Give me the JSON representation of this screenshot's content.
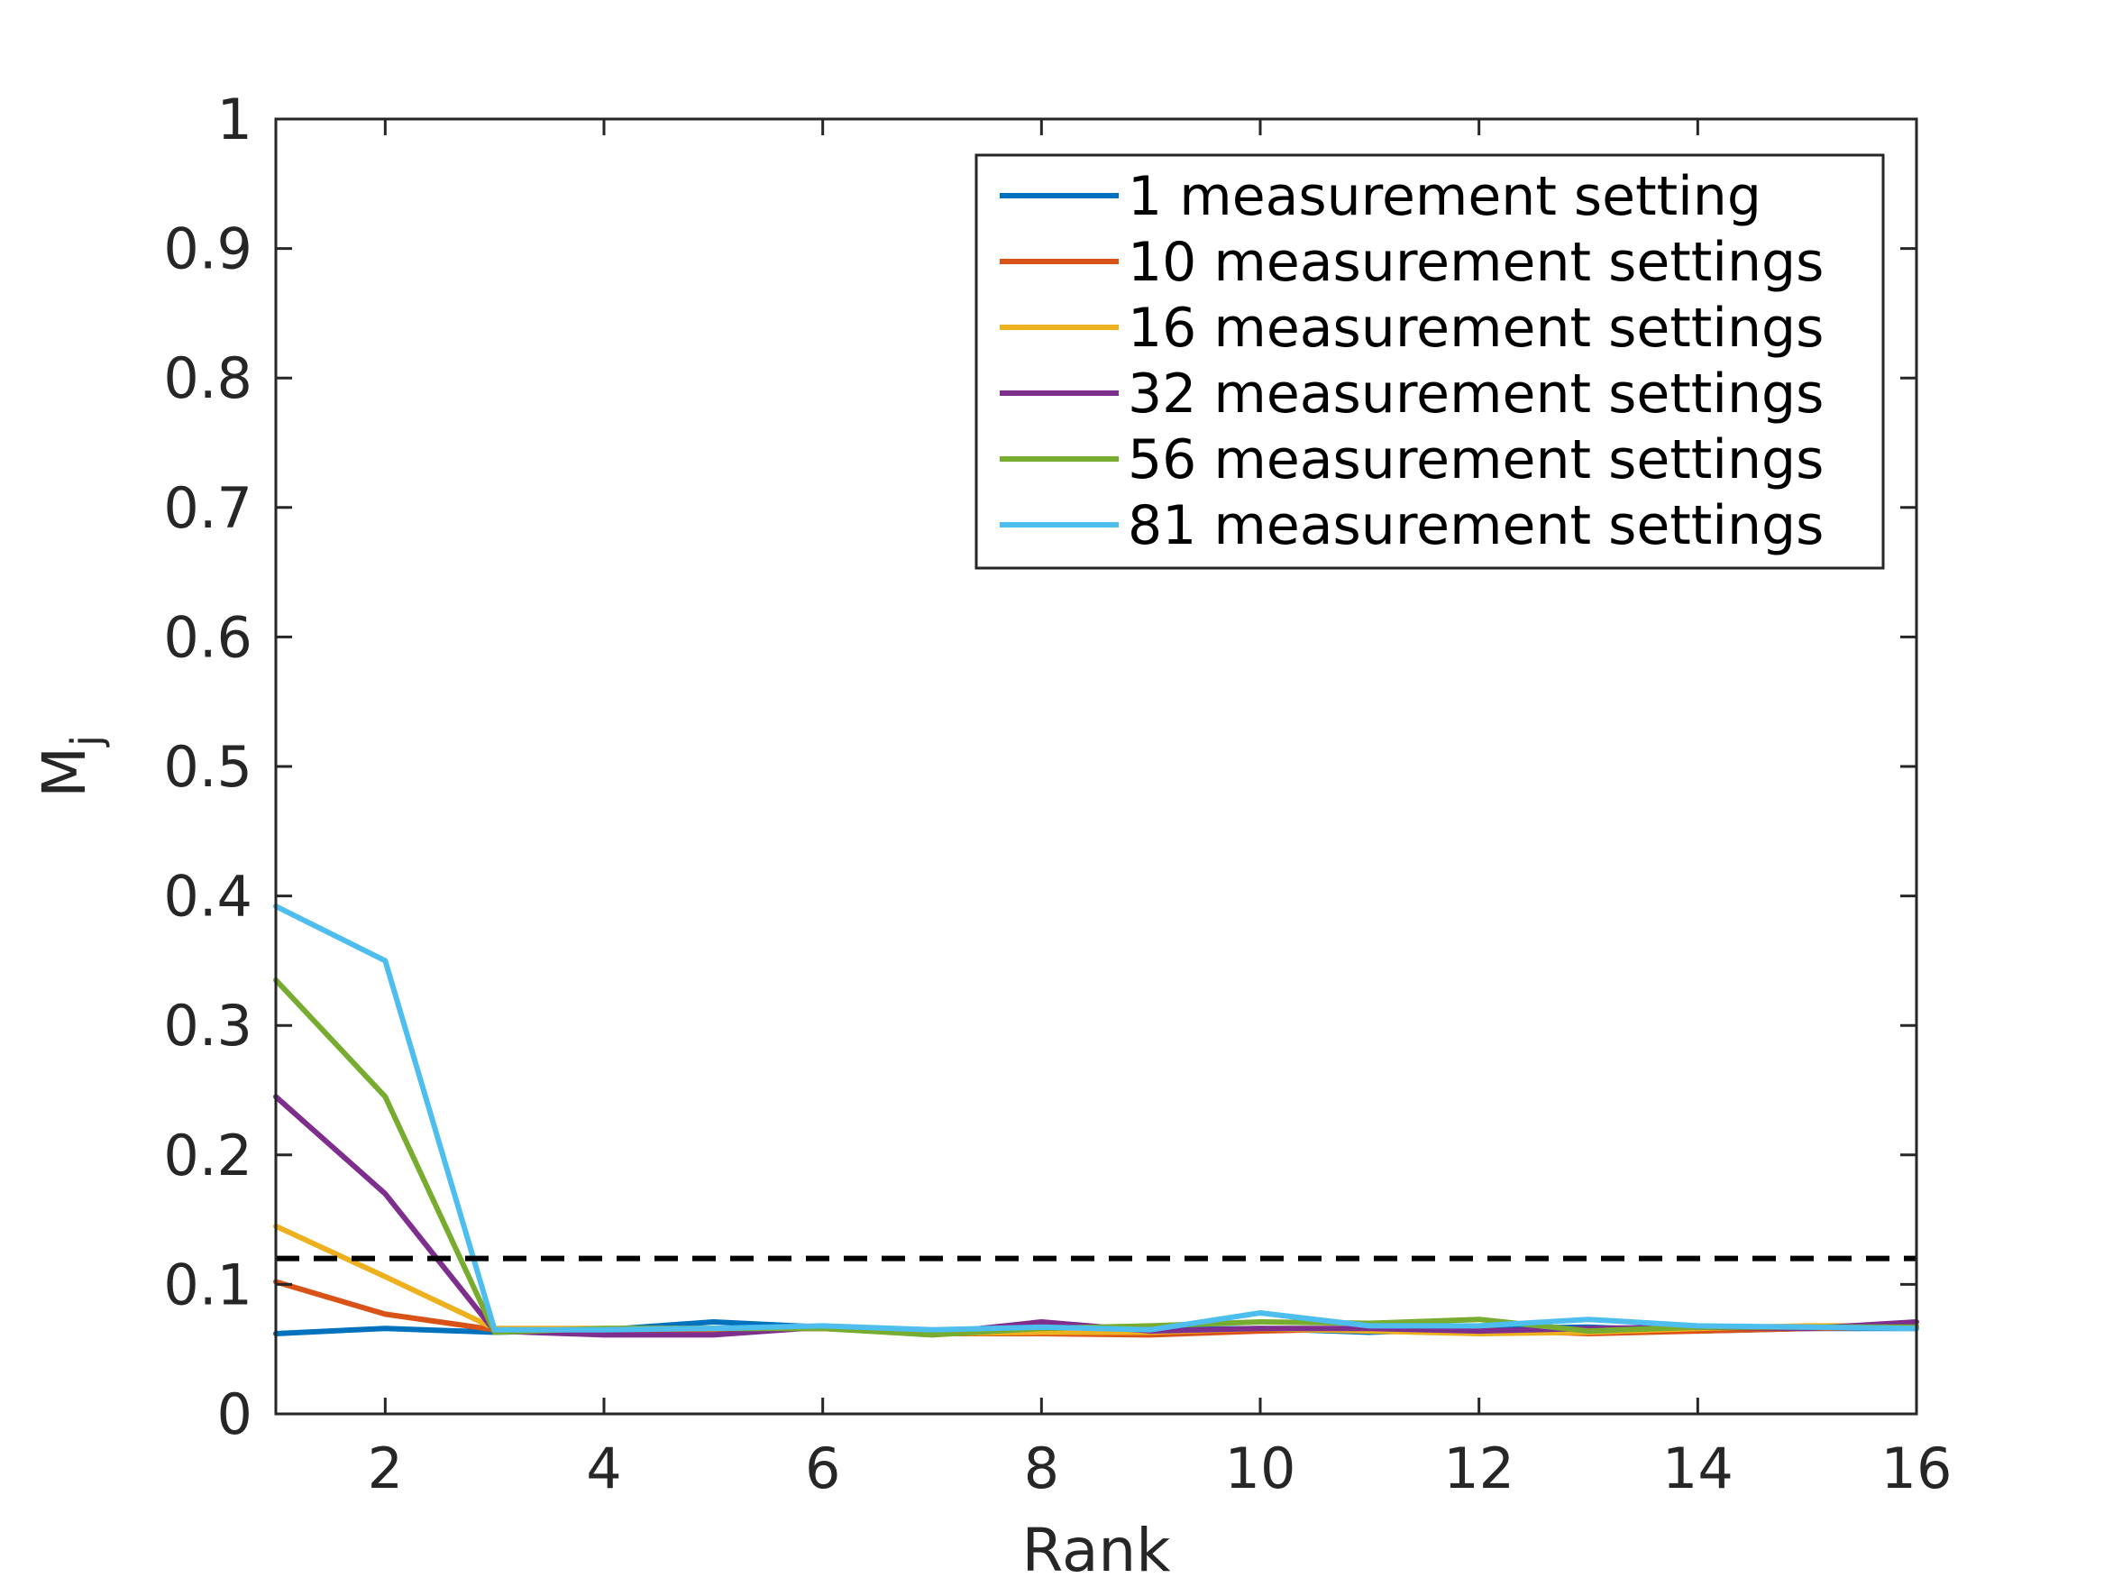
{
  "chart_data": {
    "type": "line",
    "xlabel": "Rank",
    "ylabel": "M",
    "ylabel_subscript": "j",
    "xlim": [
      1,
      16
    ],
    "ylim": [
      0,
      1
    ],
    "xticks": [
      2,
      4,
      6,
      8,
      10,
      12,
      14,
      16
    ],
    "xtick_labels": [
      "2",
      "4",
      "6",
      "8",
      "10",
      "12",
      "14",
      "16"
    ],
    "yticks": [
      0,
      0.1,
      0.2,
      0.3,
      0.4,
      0.5,
      0.6,
      0.7,
      0.8,
      0.9,
      1
    ],
    "ytick_labels": [
      "0",
      "0.1",
      "0.2",
      "0.3",
      "0.4",
      "0.5",
      "0.6",
      "0.7",
      "0.8",
      "0.9",
      "1"
    ],
    "grid": false,
    "legend_position": "top-right",
    "x": [
      1,
      2,
      3,
      4,
      5,
      6,
      7,
      8,
      9,
      10,
      11,
      12,
      13,
      14,
      15,
      16
    ],
    "series": [
      {
        "name": "1 measurement setting",
        "color": "#0072BD",
        "values": [
          0.062,
          0.066,
          0.063,
          0.065,
          0.071,
          0.067,
          0.064,
          0.066,
          0.065,
          0.066,
          0.063,
          0.066,
          0.067,
          0.064,
          0.066,
          0.066
        ]
      },
      {
        "name": "10 measurement settings",
        "color": "#D95319",
        "values": [
          0.102,
          0.077,
          0.065,
          0.064,
          0.065,
          0.066,
          0.062,
          0.062,
          0.061,
          0.064,
          0.066,
          0.065,
          0.062,
          0.064,
          0.066,
          0.067
        ]
      },
      {
        "name": "16 measurement settings",
        "color": "#EDB120",
        "values": [
          0.145,
          0.106,
          0.066,
          0.066,
          0.066,
          0.067,
          0.062,
          0.063,
          0.063,
          0.066,
          0.064,
          0.062,
          0.063,
          0.066,
          0.068,
          0.068
        ]
      },
      {
        "name": "32 measurement settings",
        "color": "#7E2F8E",
        "values": [
          0.245,
          0.17,
          0.064,
          0.061,
          0.061,
          0.067,
          0.062,
          0.071,
          0.064,
          0.066,
          0.066,
          0.064,
          0.066,
          0.067,
          0.066,
          0.071
        ]
      },
      {
        "name": "56 measurement settings",
        "color": "#77AC30",
        "values": [
          0.335,
          0.245,
          0.063,
          0.066,
          0.066,
          0.066,
          0.061,
          0.066,
          0.068,
          0.071,
          0.07,
          0.073,
          0.064,
          0.067,
          0.067,
          0.067
        ]
      },
      {
        "name": "81 measurement settings",
        "color": "#4DBEEE",
        "values": [
          0.392,
          0.35,
          0.065,
          0.065,
          0.066,
          0.068,
          0.065,
          0.067,
          0.065,
          0.078,
          0.068,
          0.068,
          0.073,
          0.068,
          0.067,
          0.066
        ]
      }
    ],
    "reference_line": {
      "y": 0.12,
      "style": "dashed",
      "color": "#000000"
    }
  }
}
